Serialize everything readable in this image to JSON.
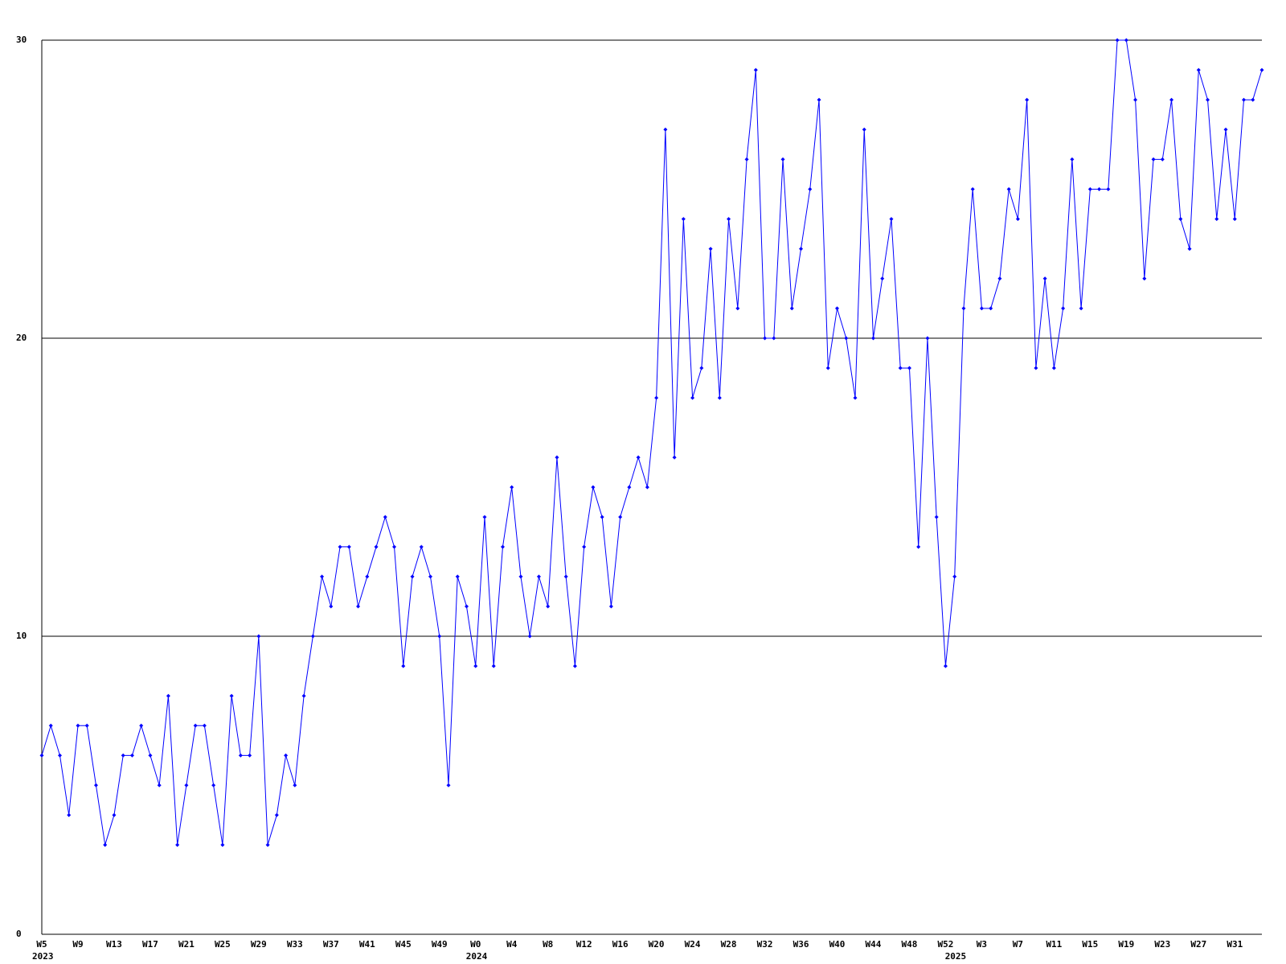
{
  "chart_data": {
    "type": "line",
    "categories": [
      "W5",
      null,
      null,
      null,
      "W9",
      null,
      null,
      null,
      "W13",
      null,
      null,
      null,
      "W17",
      null,
      null,
      null,
      "W21",
      null,
      null,
      null,
      "W25",
      null,
      null,
      null,
      "W29",
      null,
      null,
      null,
      "W33",
      null,
      null,
      null,
      "W37",
      null,
      null,
      null,
      "W41",
      null,
      null,
      null,
      "W45",
      null,
      null,
      null,
      "W49",
      null,
      null,
      null,
      "W0",
      null,
      null,
      null,
      "W4",
      null,
      null,
      null,
      "W8",
      null,
      null,
      null,
      "W12",
      null,
      null,
      null,
      "W16",
      null,
      null,
      null,
      "W20",
      null,
      null,
      null,
      "W24",
      null,
      null,
      null,
      "W28",
      null,
      null,
      null,
      "W32",
      null,
      null,
      null,
      "W36",
      null,
      null,
      null,
      "W40",
      null,
      null,
      null,
      "W44",
      null,
      null,
      null,
      "W48",
      null,
      null,
      null,
      "W52",
      null,
      null,
      null,
      "W3",
      null,
      null,
      null,
      "W7",
      null,
      null,
      null,
      "W11",
      null,
      null,
      null,
      "W15",
      null,
      null,
      null,
      "W19",
      null,
      null,
      null,
      "W23",
      null,
      null,
      null,
      "W27",
      null,
      null,
      null,
      "W31",
      null,
      null,
      null
    ],
    "year_categories": [
      "2023",
      null,
      null,
      null,
      null,
      null,
      null,
      null,
      null,
      null,
      null,
      null,
      null,
      null,
      null,
      null,
      null,
      null,
      null,
      null,
      null,
      null,
      null,
      null,
      null,
      null,
      null,
      null,
      null,
      null,
      null,
      null,
      null,
      null,
      null,
      null,
      null,
      null,
      null,
      null,
      null,
      null,
      null,
      null,
      null,
      null,
      null,
      null,
      "2024",
      null,
      null,
      null,
      null,
      null,
      null,
      null,
      null,
      null,
      null,
      null,
      null,
      null,
      null,
      null,
      null,
      null,
      null,
      null,
      null,
      null,
      null,
      null,
      null,
      null,
      null,
      null,
      null,
      null,
      null,
      null,
      null,
      null,
      null,
      null,
      null,
      null,
      null,
      null,
      null,
      null,
      null,
      null,
      null,
      null,
      null,
      null,
      null,
      null,
      null,
      null,
      null,
      "2025",
      null,
      null,
      null,
      null,
      null,
      null,
      null,
      null,
      null,
      null,
      null,
      null,
      null,
      null,
      null,
      null,
      null,
      null,
      null,
      null,
      null,
      null,
      null,
      null,
      null,
      null,
      null,
      null,
      null,
      null,
      null,
      null,
      null,
      null
    ],
    "series": [
      {
        "color": "#0000ff",
        "values": [
          6,
          7,
          6,
          4,
          7,
          7,
          5,
          3,
          4,
          6,
          6,
          7,
          6,
          5,
          8,
          3,
          5,
          7,
          7,
          5,
          3,
          8,
          6,
          6,
          10,
          3,
          4,
          6,
          5,
          8,
          10,
          12,
          11,
          13,
          13,
          11,
          12,
          13,
          14,
          13,
          9,
          12,
          13,
          12,
          10,
          5,
          12,
          11,
          9,
          14,
          9,
          13,
          15,
          12,
          10,
          12,
          11,
          16,
          12,
          9,
          13,
          15,
          14,
          11,
          14,
          15,
          16,
          15,
          18,
          27,
          16,
          24,
          18,
          19,
          23,
          18,
          24,
          21,
          26,
          29,
          20,
          20,
          26,
          21,
          23,
          25,
          28,
          19,
          21,
          20,
          18,
          27,
          20,
          22,
          24,
          19,
          19,
          13,
          20,
          14,
          9,
          12,
          21,
          25,
          21,
          21,
          22,
          25,
          24,
          28,
          19,
          22,
          19,
          21,
          26,
          21,
          25,
          25,
          25,
          30,
          30,
          28,
          22,
          26,
          26,
          28,
          24,
          23,
          29,
          28,
          24,
          27,
          24,
          28,
          28,
          29
        ]
      }
    ],
    "ylim": [
      0,
      30
    ],
    "yticks": [
      0,
      10,
      20,
      30
    ],
    "grid": true
  }
}
